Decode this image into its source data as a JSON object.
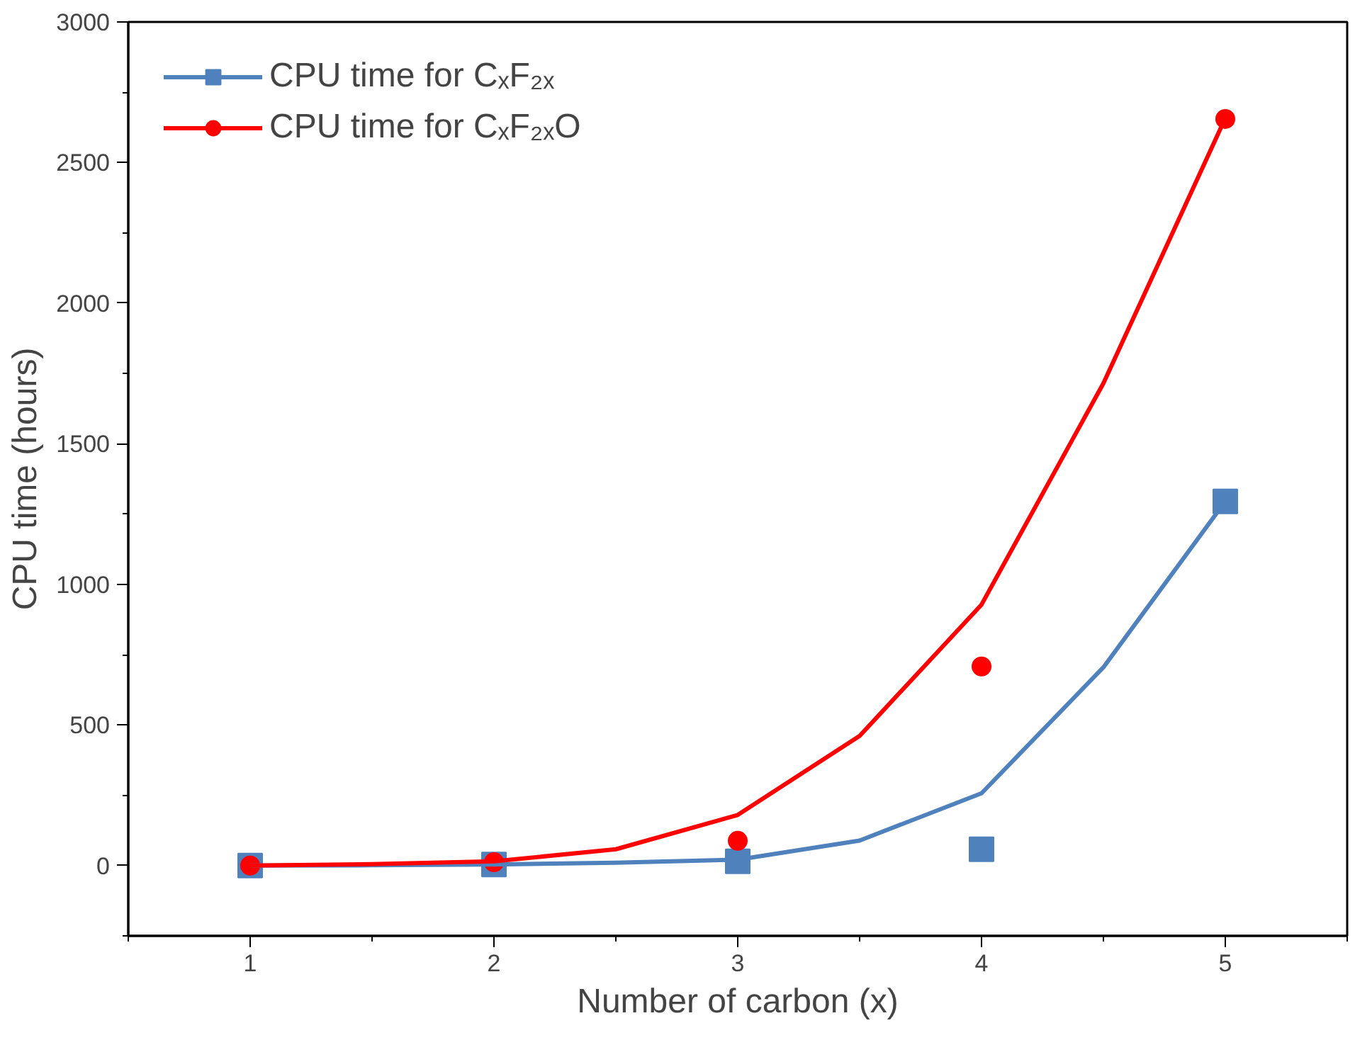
{
  "chart_data": {
    "type": "scatter",
    "xlabel": "Number of carbon (x)",
    "ylabel": "CPU time (hours)",
    "xlim": [
      0.5,
      5.5
    ],
    "xticks": [
      1,
      2,
      3,
      4,
      5
    ],
    "ylim": [
      -250,
      3000
    ],
    "yticks": [
      0,
      500,
      1000,
      1500,
      2000,
      2500,
      3000
    ],
    "grid": false,
    "legend": "top left",
    "series": [
      {
        "name": "CPU time for CₓF₂ₓ",
        "color": "#4f81bd",
        "marker": "square",
        "x": [
          1,
          2,
          3,
          4,
          5
        ],
        "values": [
          0,
          4,
          15,
          58,
          1295
        ]
      },
      {
        "name": "CPU time for CₓF₂ₓO",
        "color": "#ff0000",
        "marker": "circle",
        "x": [
          1,
          2,
          3,
          4,
          5
        ],
        "values": [
          0,
          12,
          88,
          708,
          2655
        ]
      },
      {
        "type": "line",
        "color": "#4f81bd",
        "marker": "none",
        "x": [
          1,
          1.5,
          2,
          2.5,
          3,
          3.5,
          4,
          4.5,
          5
        ],
        "values": [
          0,
          1,
          4,
          10,
          21,
          89,
          257,
          705,
          1295
        ]
      },
      {
        "type": "line",
        "color": "#ff0000",
        "marker": "none",
        "x": [
          1,
          1.5,
          2,
          2.5,
          3,
          3.5,
          4,
          4.5,
          5
        ],
        "values": [
          0,
          5,
          15,
          58,
          180,
          461,
          928,
          1715,
          2658
        ]
      }
    ]
  }
}
